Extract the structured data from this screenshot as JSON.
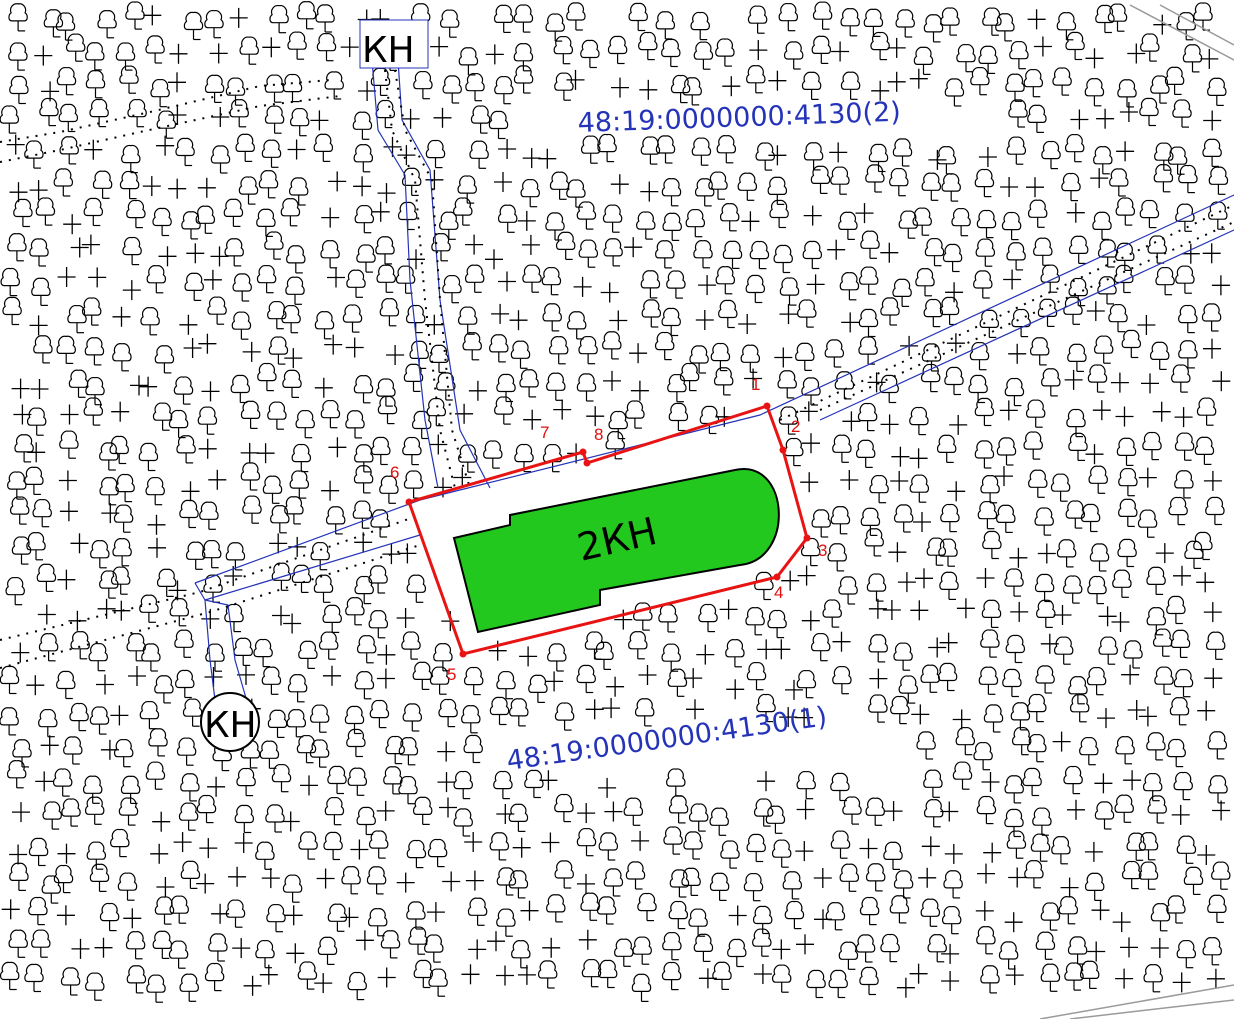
{
  "map": {
    "parcels": [
      {
        "id": "parcel-2",
        "label": "48:19:0000000:4130(2)"
      },
      {
        "id": "parcel-1",
        "label": "48:19:0000000:4130(1)"
      }
    ],
    "object_label": "2КН",
    "well_labels": [
      "КН",
      "КН"
    ],
    "vertices": [
      "1",
      "2",
      "3",
      "4",
      "5",
      "6",
      "7",
      "8"
    ],
    "colors": {
      "boundary": "#e81414",
      "building_fill": "#22c81e",
      "road_line": "#2433b8",
      "parcel_text": "#2433b8",
      "vertex_text": "#e01010",
      "symbols": "#000000"
    },
    "symbols": [
      "deciduous-tree-icon",
      "meadow-cross-icon"
    ]
  }
}
